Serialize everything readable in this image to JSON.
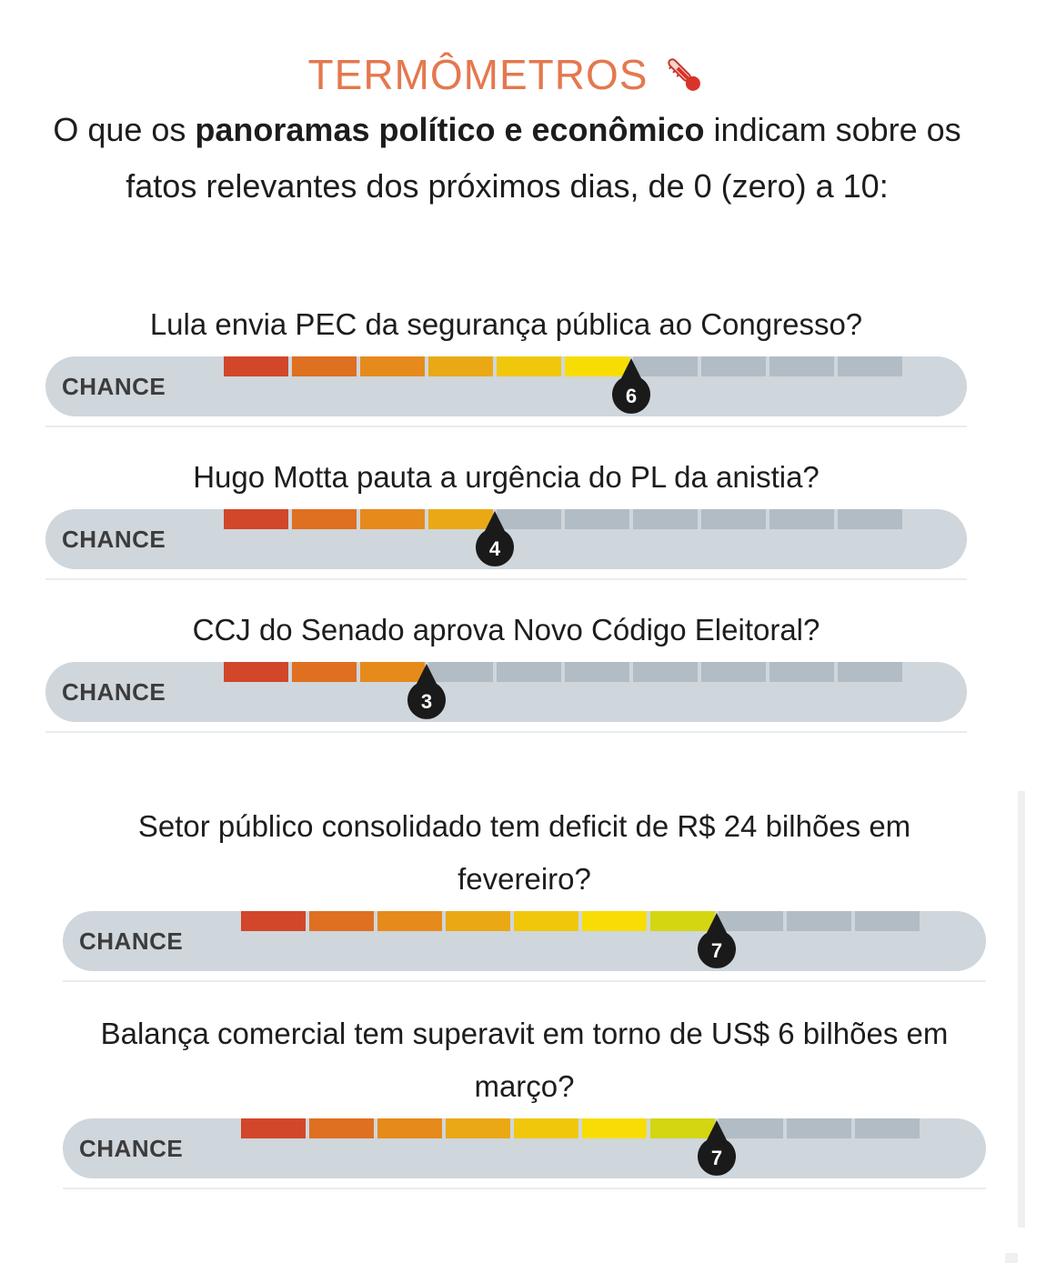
{
  "header": {
    "title": "TERMÔMETROS",
    "title_icon": "thermometer-icon",
    "subtitle_pre": "O que os ",
    "subtitle_bold": "panoramas político e econômico",
    "subtitle_post": " indicam sobre os fatos relevantes dos próximos dias, de 0 (zero) a 10:"
  },
  "scale": {
    "max": 10,
    "colors": [
      "#d2462a",
      "#df6f21",
      "#e68a1c",
      "#eaa914",
      "#f1c70c",
      "#f8dd05",
      "#d4d612",
      "#b5cc2a",
      "#9dc43a",
      "#89bd48"
    ],
    "empty_color": "#b2bcc4",
    "track_color": "#cfd6dc",
    "marker_color": "#1a1a1a"
  },
  "thermometers": [
    {
      "question": "Lula envia PEC da segurança pública ao Congresso?",
      "label": "CHANCE",
      "value": 6
    },
    {
      "question": "Hugo Motta pauta a urgência do PL da anistia?",
      "label": "CHANCE",
      "value": 4
    },
    {
      "question": "CCJ do Senado aprova Novo Código Eleitoral?",
      "label": "CHANCE",
      "value": 3
    },
    {
      "question": "Setor público consolidado tem deficit de R$ 24 bilhões em fevereiro?",
      "label": "CHANCE",
      "value": 7
    },
    {
      "question": "Balança comercial tem superavit em torno de US$ 6 bilhões em março?",
      "label": "CHANCE",
      "value": 7
    }
  ]
}
